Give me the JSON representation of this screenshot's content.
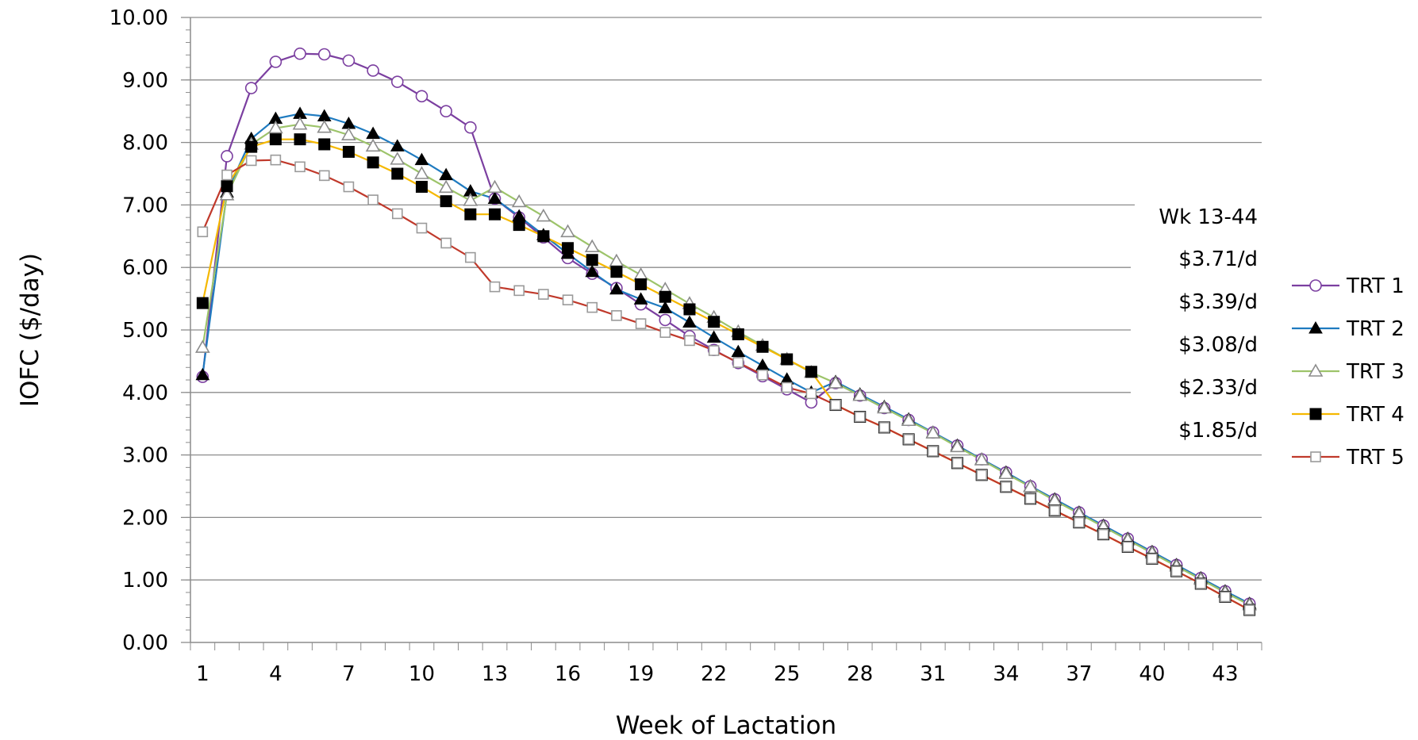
{
  "chart_data": {
    "type": "line",
    "xlabel": "Week of Lactation",
    "ylabel": "IOFC ($/day)",
    "xlim": [
      1,
      44
    ],
    "ylim": [
      0,
      10
    ],
    "grid": true,
    "legend_position": "right",
    "x": [
      1,
      2,
      3,
      4,
      5,
      6,
      7,
      8,
      9,
      10,
      11,
      12,
      13,
      14,
      15,
      16,
      17,
      18,
      19,
      20,
      21,
      22,
      23,
      24,
      25,
      26,
      27,
      28,
      29,
      30,
      31,
      32,
      33,
      34,
      35,
      36,
      37,
      38,
      39,
      40,
      41,
      42,
      43,
      44
    ],
    "x_tick_labels": [
      "1",
      "4",
      "7",
      "10",
      "13",
      "16",
      "19",
      "22",
      "25",
      "28",
      "31",
      "34",
      "37",
      "40",
      "43"
    ],
    "y_tick_labels": [
      "0.00",
      "1.00",
      "2.00",
      "3.00",
      "4.00",
      "5.00",
      "6.00",
      "7.00",
      "8.00",
      "9.00",
      "10.00"
    ],
    "series": [
      {
        "name": "TRT 1",
        "color": "#7B3FA0",
        "marker": "circle-open",
        "values": [
          4.25,
          7.78,
          8.87,
          9.29,
          9.42,
          9.41,
          9.31,
          9.15,
          8.97,
          8.74,
          8.5,
          8.24,
          7.1,
          6.8,
          6.48,
          6.15,
          5.9,
          5.67,
          5.41,
          5.16,
          4.9,
          4.68,
          4.47,
          4.26,
          4.05,
          3.84,
          4.15,
          3.95,
          3.75,
          3.56,
          3.36,
          3.15,
          2.93,
          2.72,
          2.5,
          2.29,
          2.08,
          1.87,
          1.66,
          1.45,
          1.24,
          1.03,
          0.82,
          0.62
        ]
      },
      {
        "name": "TRT 2",
        "color": "#1F7BC0",
        "marker": "triangle-filled",
        "values": [
          4.28,
          7.2,
          8.06,
          8.38,
          8.46,
          8.42,
          8.3,
          8.14,
          7.94,
          7.72,
          7.48,
          7.22,
          7.1,
          6.82,
          6.52,
          6.22,
          5.93,
          5.65,
          5.49,
          5.35,
          5.12,
          4.88,
          4.65,
          4.43,
          4.21,
          4.0,
          4.17,
          3.97,
          3.77,
          3.57,
          3.36,
          3.15,
          2.93,
          2.72,
          2.5,
          2.29,
          2.08,
          1.87,
          1.66,
          1.45,
          1.24,
          1.03,
          0.82,
          0.62
        ]
      },
      {
        "name": "TRT 3",
        "color": "#9DC46A",
        "marker": "triangle-open",
        "values": [
          4.72,
          7.16,
          7.97,
          8.23,
          8.29,
          8.24,
          8.12,
          7.94,
          7.73,
          7.5,
          7.28,
          7.07,
          7.28,
          7.05,
          6.82,
          6.57,
          6.33,
          6.1,
          5.88,
          5.65,
          5.42,
          5.2,
          4.97,
          4.75,
          4.53,
          4.32,
          4.15,
          3.95,
          3.75,
          3.55,
          3.35,
          3.13,
          2.92,
          2.7,
          2.49,
          2.27,
          2.06,
          1.85,
          1.64,
          1.43,
          1.22,
          1.01,
          0.8,
          0.6
        ]
      },
      {
        "name": "TRT 4",
        "color": "#F5B800",
        "marker": "square-filled",
        "values": [
          5.43,
          7.3,
          7.93,
          8.05,
          8.05,
          7.97,
          7.85,
          7.68,
          7.5,
          7.29,
          7.06,
          6.85,
          6.85,
          6.68,
          6.5,
          6.31,
          6.12,
          5.93,
          5.73,
          5.53,
          5.33,
          5.13,
          4.93,
          4.73,
          4.53,
          4.33,
          3.8,
          3.61,
          3.44,
          3.25,
          3.06,
          2.87,
          2.68,
          2.49,
          2.3,
          2.11,
          1.92,
          1.73,
          1.53,
          1.34,
          1.14,
          0.94,
          0.73,
          0.52
        ]
      },
      {
        "name": "TRT 5",
        "color": "#C0392B",
        "marker": "square-open",
        "values": [
          6.57,
          7.48,
          7.71,
          7.72,
          7.61,
          7.47,
          7.29,
          7.08,
          6.86,
          6.63,
          6.39,
          6.16,
          5.69,
          5.63,
          5.57,
          5.48,
          5.36,
          5.23,
          5.1,
          4.96,
          4.83,
          4.67,
          4.48,
          4.28,
          4.08,
          3.98,
          3.8,
          3.61,
          3.44,
          3.25,
          3.06,
          2.87,
          2.68,
          2.49,
          2.3,
          2.11,
          1.92,
          1.73,
          1.53,
          1.34,
          1.14,
          0.94,
          0.73,
          0.52
        ]
      }
    ],
    "annotations": {
      "header": "Wk 13-44",
      "values": [
        "$3.71/d",
        "$3.39/d",
        "$3.08/d",
        "$2.33/d",
        "$1.85/d"
      ]
    }
  }
}
